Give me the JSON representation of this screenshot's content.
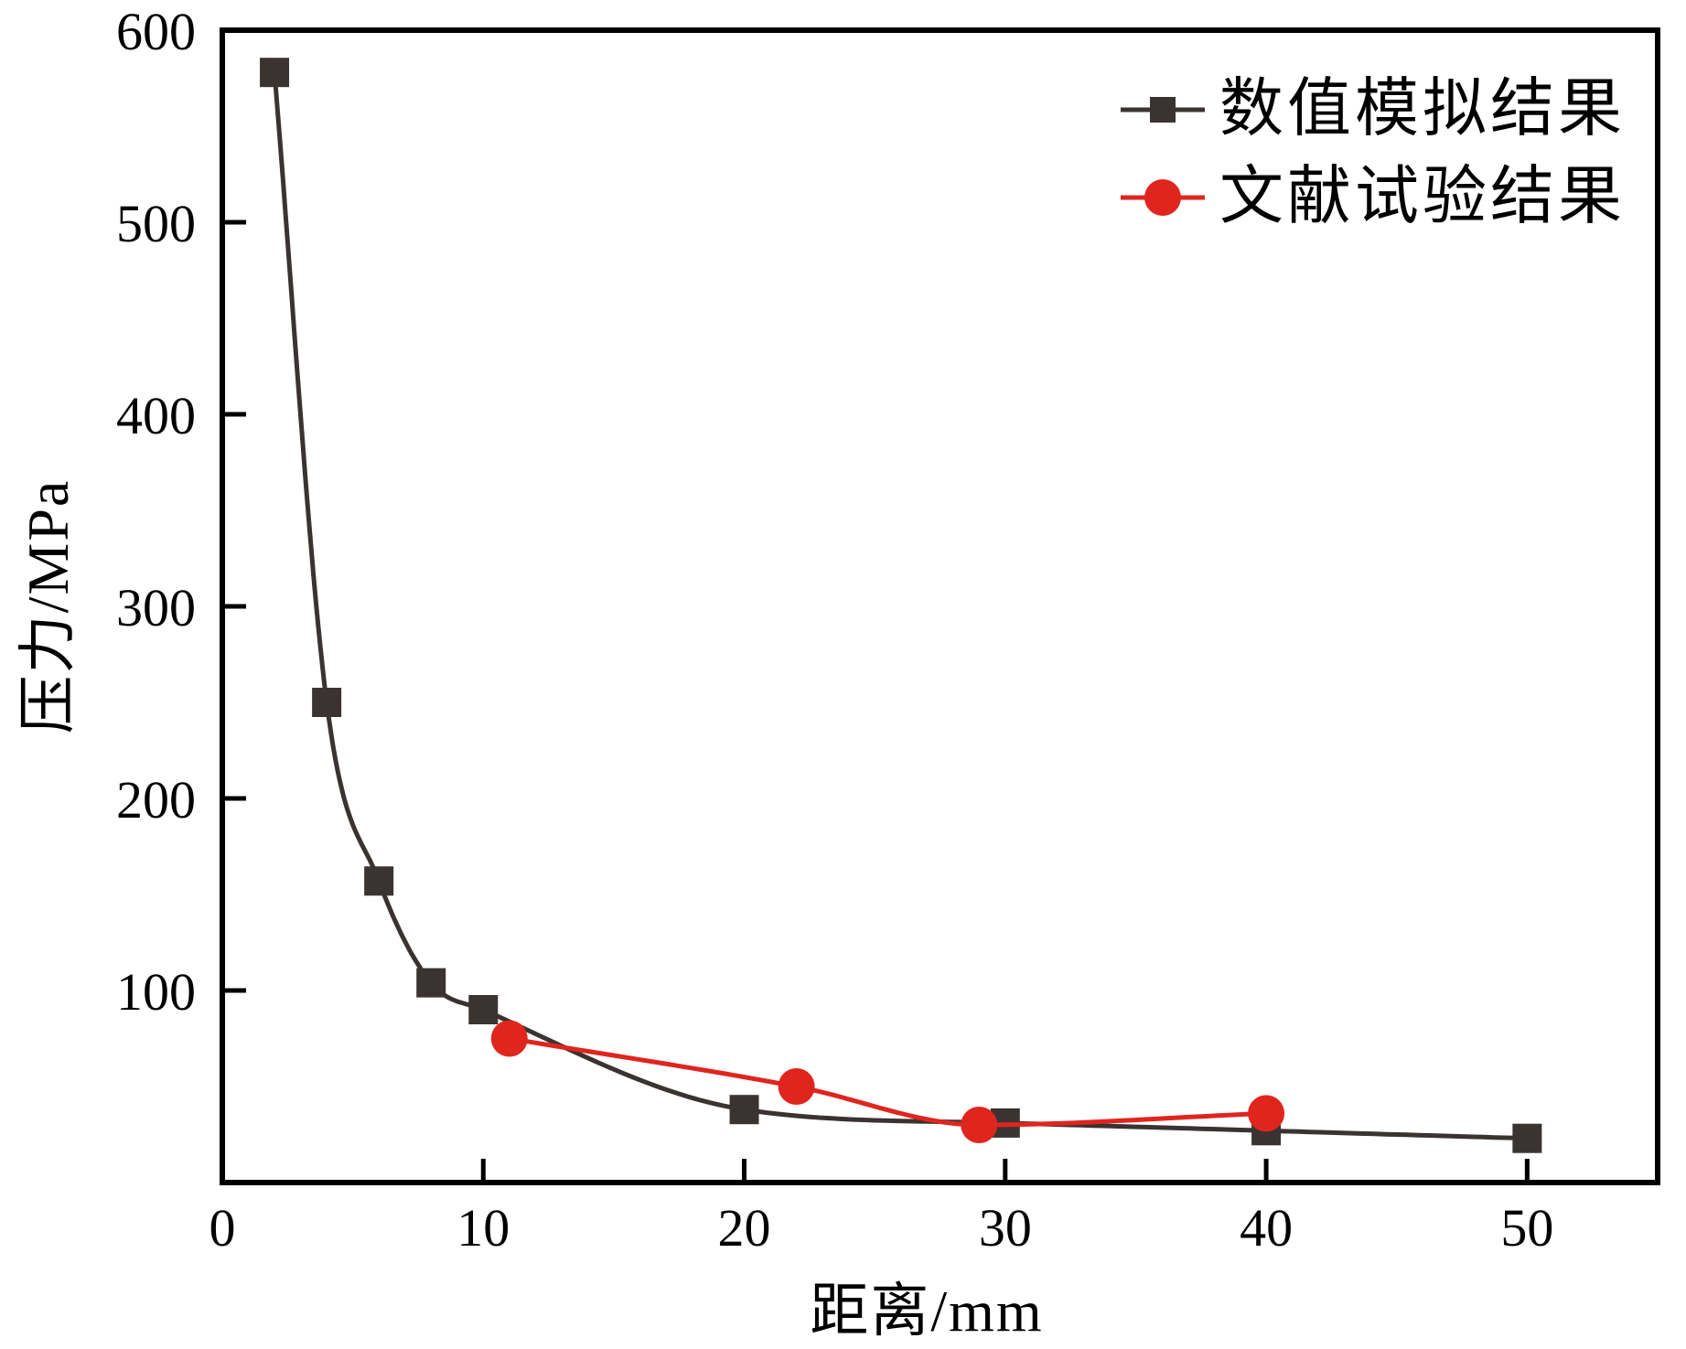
{
  "figure": {
    "background": "#ffffff",
    "axis_color": "#000000"
  },
  "chart_data": {
    "type": "line",
    "title": "",
    "xlabel": "距离/mm",
    "ylabel": "压力/MPa",
    "xlim": [
      0,
      55
    ],
    "ylim": [
      0,
      600
    ],
    "xticks": [
      0,
      10,
      20,
      30,
      40,
      50
    ],
    "yticks": [
      100,
      200,
      300,
      400,
      500,
      600
    ],
    "grid": false,
    "legend_position": "top-right-inside",
    "series": [
      {
        "name": "数值模拟结果",
        "color": "#3a3331",
        "marker": "square",
        "x": [
          2,
          4,
          6,
          8,
          10,
          20,
          30,
          40,
          50
        ],
        "y": [
          578,
          250,
          157,
          104,
          90,
          38,
          31,
          27,
          23
        ]
      },
      {
        "name": "文献试验结果",
        "color": "#e0251e",
        "marker": "circle",
        "x": [
          11,
          22,
          29,
          40
        ],
        "y": [
          75,
          50,
          30,
          36
        ]
      }
    ]
  }
}
